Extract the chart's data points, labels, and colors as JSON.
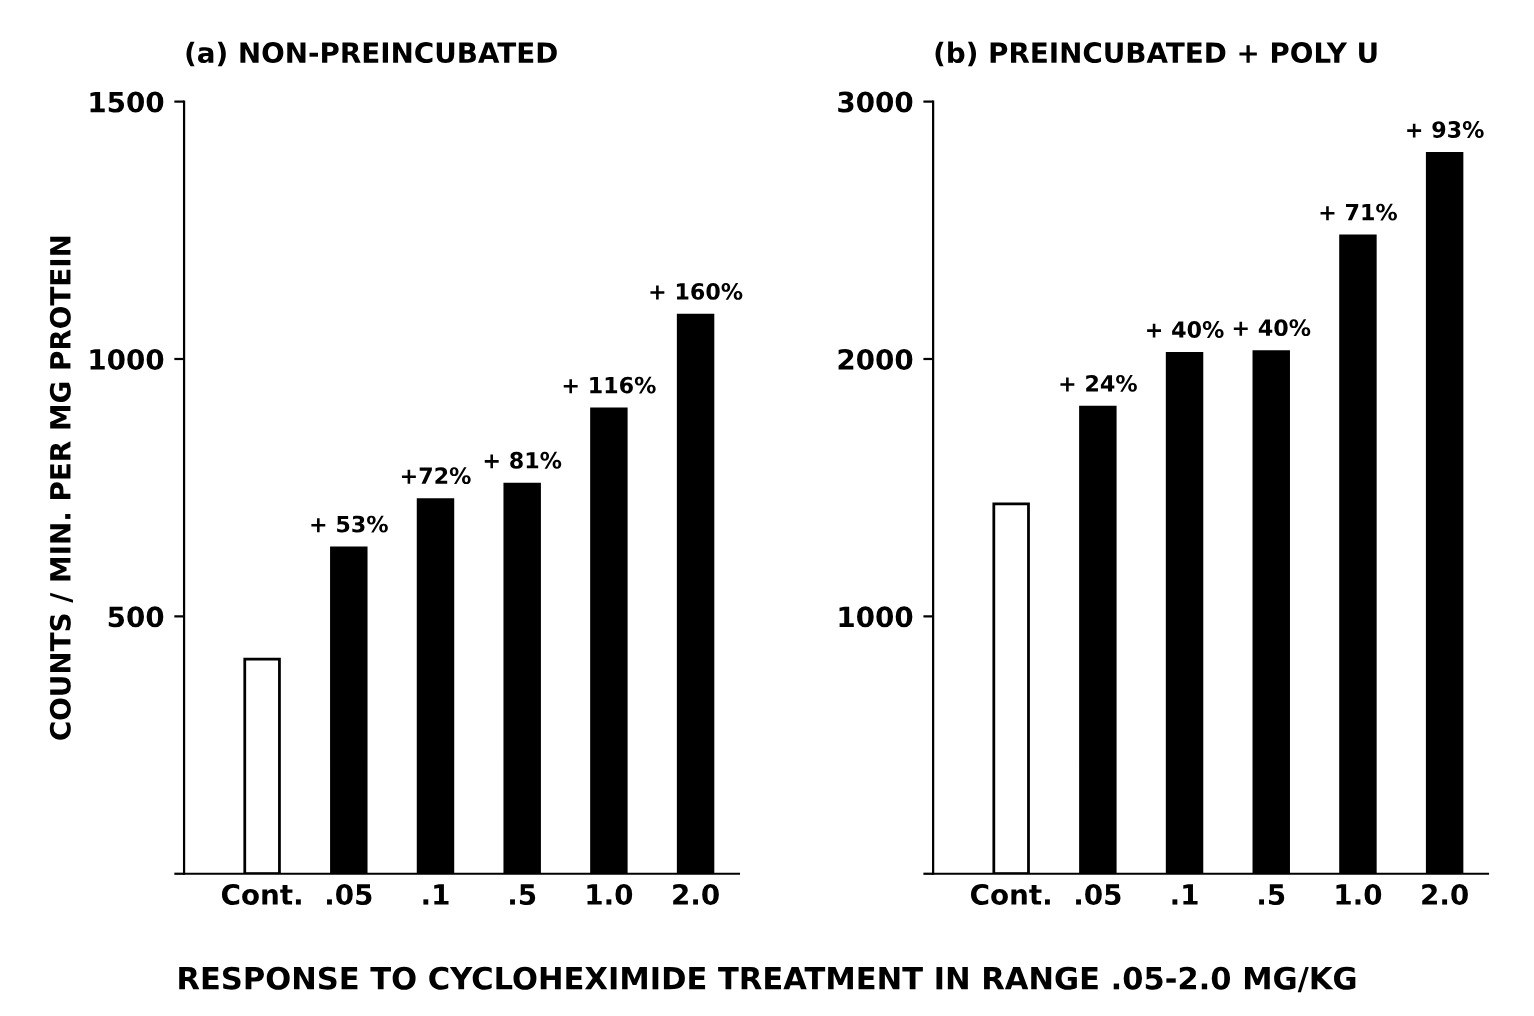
{
  "chart_data": [
    {
      "type": "bar",
      "title": "(a) NON-PREINCUBATED",
      "xlabel": "RESPONSE TO CYCLOHEXIMIDE TREATMENT IN RANGE .05-2.0 MG/KG",
      "ylabel": "COUNTS / MIN. PER MG PROTEIN",
      "categories": [
        "Cont.",
        ".05",
        ".1",
        ".5",
        "1.0",
        "2.0"
      ],
      "values": [
        417,
        633,
        727,
        757,
        903,
        1085
      ],
      "colors": [
        "#ffffff",
        "#000000",
        "#000000",
        "#000000",
        "#000000",
        "#000000"
      ],
      "annotations": [
        {
          "text": "+ 53%",
          "x": ".05",
          "y": 633
        },
        {
          "text": "+72%",
          "x": ".1",
          "y": 727
        },
        {
          "text": "+ 81%",
          "x": ".5",
          "y": 757
        },
        {
          "text": "+ 116%",
          "x": "1.0",
          "y": 903
        },
        {
          "text": "+ 160%",
          "x": "2.0",
          "y": 1085
        }
      ],
      "ylim": [
        0,
        1500
      ],
      "yticks": [
        {
          "value": 0,
          "label": null
        },
        500,
        1000,
        1500
      ],
      "grid": false,
      "legend": false
    },
    {
      "type": "bar",
      "title": "(b) PREINCUBATED + POLY U",
      "categories": [
        "Cont.",
        ".05",
        ".1",
        ".5",
        "1.0",
        "2.0"
      ],
      "values": [
        1437,
        1813,
        2022,
        2029,
        2478,
        2799
      ],
      "colors": [
        "#ffffff",
        "#000000",
        "#000000",
        "#000000",
        "#000000",
        "#000000"
      ],
      "annotations": [
        {
          "text": "+ 24%",
          "x": ".05",
          "y": 1813
        },
        {
          "text": "+ 40%",
          "x": ".1",
          "y": 2022
        },
        {
          "text": "+ 40%",
          "x": ".5",
          "y": 2029
        },
        {
          "text": "+ 71%",
          "x": "1.0",
          "y": 2478
        },
        {
          "text": "+ 93%",
          "x": "2.0",
          "y": 2799
        }
      ],
      "ylim": [
        0,
        3000
      ],
      "yticks": [
        {
          "value": 0,
          "label": null
        },
        1000,
        2000,
        3000
      ],
      "grid": false,
      "legend": false
    }
  ]
}
